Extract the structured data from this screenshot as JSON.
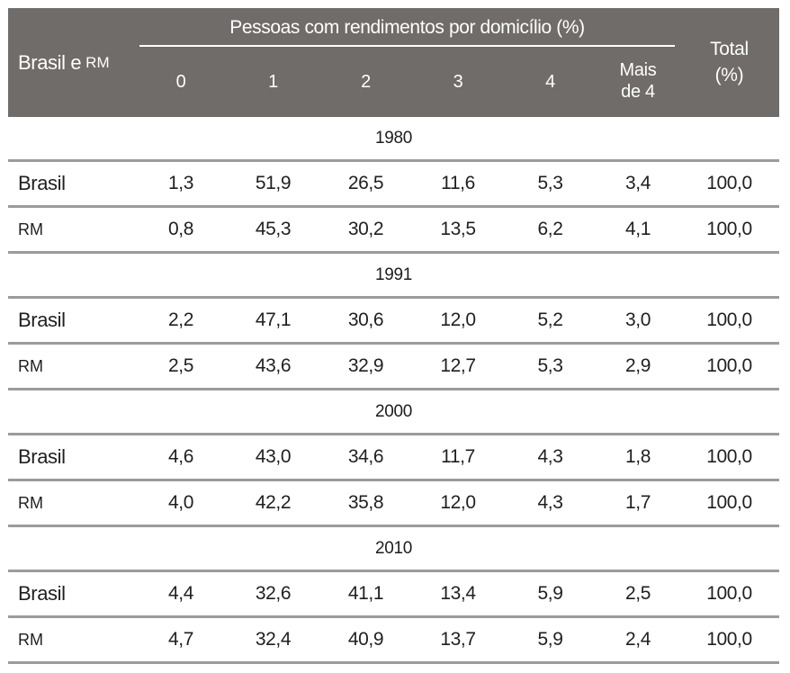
{
  "table": {
    "header": {
      "row_label_main": "Brasil e",
      "row_label_small": "RM",
      "group_title": "Pessoas com rendimentos por domicílio (%)",
      "columns": [
        "0",
        "1",
        "2",
        "3",
        "4",
        "Mais de 4"
      ],
      "total_line1": "Total",
      "total_line2": "(%)"
    },
    "sections": [
      {
        "year": "1980",
        "rows": [
          {
            "label": "Brasil",
            "values": [
              "1,3",
              "51,9",
              "26,5",
              "11,6",
              "5,3",
              "3,4",
              "100,0"
            ]
          },
          {
            "label": "RM",
            "values": [
              "0,8",
              "45,3",
              "30,2",
              "13,5",
              "6,2",
              "4,1",
              "100,0"
            ]
          }
        ]
      },
      {
        "year": "1991",
        "rows": [
          {
            "label": "Brasil",
            "values": [
              "2,2",
              "47,1",
              "30,6",
              "12,0",
              "5,2",
              "3,0",
              "100,0"
            ]
          },
          {
            "label": "RM",
            "values": [
              "2,5",
              "43,6",
              "32,9",
              "12,7",
              "5,3",
              "2,9",
              "100,0"
            ]
          }
        ]
      },
      {
        "year": "2000",
        "rows": [
          {
            "label": "Brasil",
            "values": [
              "4,6",
              "43,0",
              "34,6",
              "11,7",
              "4,3",
              "1,8",
              "100,0"
            ]
          },
          {
            "label": "RM",
            "values": [
              "4,0",
              "42,2",
              "35,8",
              "12,0",
              "4,3",
              "1,7",
              "100,0"
            ]
          }
        ]
      },
      {
        "year": "2010",
        "rows": [
          {
            "label": "Brasil",
            "values": [
              "4,4",
              "32,6",
              "41,1",
              "13,4",
              "5,9",
              "2,5",
              "100,0"
            ]
          },
          {
            "label": "RM",
            "values": [
              "4,7",
              "32,4",
              "40,9",
              "13,7",
              "5,9",
              "2,4",
              "100,0"
            ]
          }
        ]
      }
    ],
    "colors": {
      "header_bg": "#6f6c69",
      "header_text": "#ffffff",
      "body_text": "#1f1f1f",
      "divider": "#9b9b9b"
    }
  },
  "chart_data": {
    "type": "table",
    "title": "Pessoas com rendimentos por domicílio (%)",
    "column_headers": [
      "Brasil e RM",
      "0",
      "1",
      "2",
      "3",
      "4",
      "Mais de 4",
      "Total (%)"
    ],
    "sections": [
      {
        "year": 1980,
        "rows": [
          {
            "label": "Brasil",
            "values": [
              1.3,
              51.9,
              26.5,
              11.6,
              5.3,
              3.4
            ],
            "total": 100.0
          },
          {
            "label": "RM",
            "values": [
              0.8,
              45.3,
              30.2,
              13.5,
              6.2,
              4.1
            ],
            "total": 100.0
          }
        ]
      },
      {
        "year": 1991,
        "rows": [
          {
            "label": "Brasil",
            "values": [
              2.2,
              47.1,
              30.6,
              12.0,
              5.2,
              3.0
            ],
            "total": 100.0
          },
          {
            "label": "RM",
            "values": [
              2.5,
              43.6,
              32.9,
              12.7,
              5.3,
              2.9
            ],
            "total": 100.0
          }
        ]
      },
      {
        "year": 2000,
        "rows": [
          {
            "label": "Brasil",
            "values": [
              4.6,
              43.0,
              34.6,
              11.7,
              4.3,
              1.8
            ],
            "total": 100.0
          },
          {
            "label": "RM",
            "values": [
              4.0,
              42.2,
              35.8,
              12.0,
              4.3,
              1.7
            ],
            "total": 100.0
          }
        ]
      },
      {
        "year": 2010,
        "rows": [
          {
            "label": "Brasil",
            "values": [
              4.4,
              32.6,
              41.1,
              13.4,
              5.9,
              2.5
            ],
            "total": 100.0
          },
          {
            "label": "RM",
            "values": [
              4.7,
              32.4,
              40.9,
              13.7,
              5.9,
              2.4
            ],
            "total": 100.0
          }
        ]
      }
    ]
  }
}
